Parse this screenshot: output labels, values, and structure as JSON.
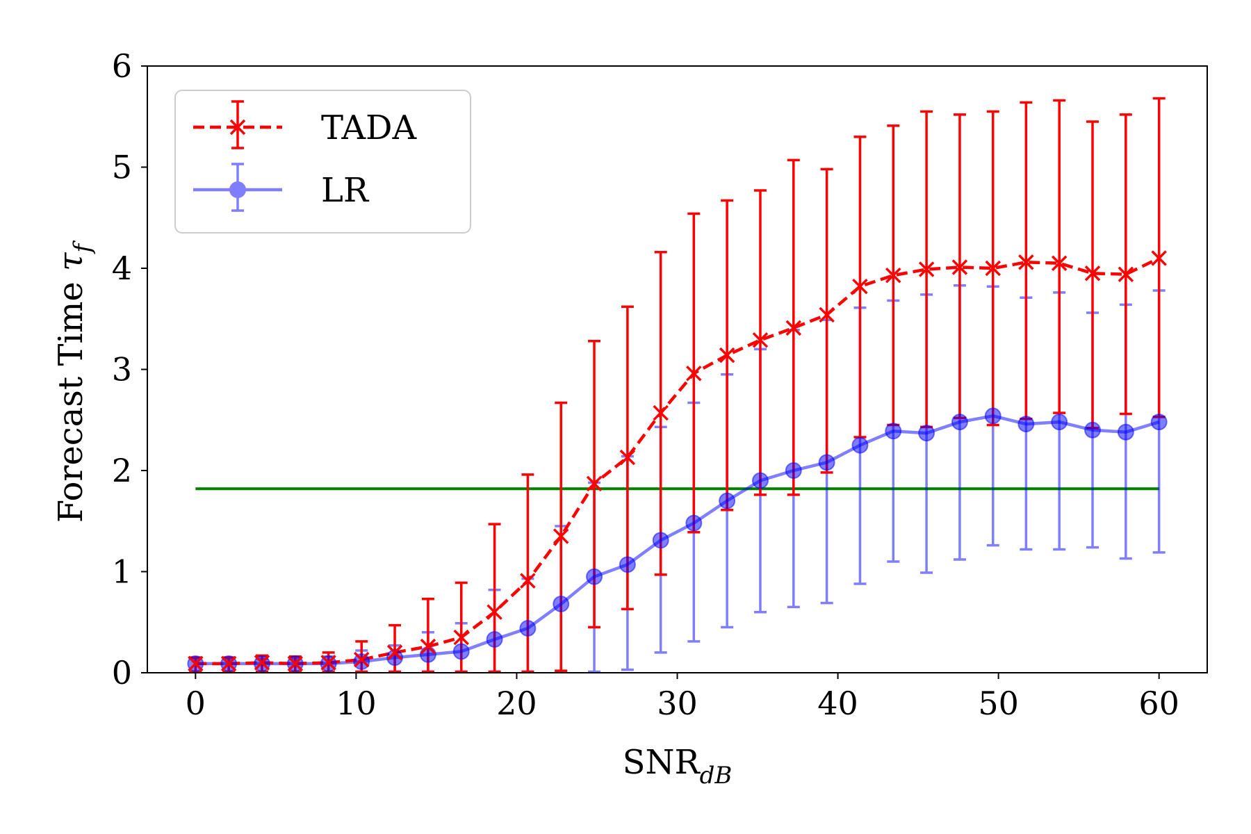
{
  "chart_data": {
    "type": "line",
    "title": "",
    "xlabel_main": "SNR",
    "xlabel_sub": "dB",
    "ylabel_main": "Forecast Time ",
    "ylabel_sym": "τ",
    "ylabel_sub": "f",
    "xlim": [
      -3,
      63
    ],
    "ylim": [
      0,
      6
    ],
    "xticks": [
      0,
      10,
      20,
      30,
      40,
      50,
      60
    ],
    "yticks": [
      0,
      1,
      2,
      3,
      4,
      5,
      6
    ],
    "legend_position": "top-left",
    "reference_line": {
      "y": 1.82,
      "x_start": 0,
      "x_end": 60,
      "color": "#008000"
    },
    "x": [
      0,
      2.07,
      4.14,
      6.21,
      8.28,
      10.34,
      12.41,
      14.48,
      16.55,
      18.62,
      20.69,
      22.76,
      24.83,
      26.9,
      28.97,
      31.03,
      33.1,
      35.17,
      37.24,
      39.31,
      41.38,
      43.45,
      45.52,
      47.59,
      49.66,
      51.72,
      53.79,
      55.86,
      57.93,
      60.0
    ],
    "series": [
      {
        "name": "TADA",
        "color": "#ff0000",
        "linestyle": "dashed",
        "marker": "x",
        "values": [
          0.09,
          0.09,
          0.1,
          0.09,
          0.1,
          0.13,
          0.2,
          0.26,
          0.35,
          0.6,
          0.91,
          1.35,
          1.87,
          2.13,
          2.57,
          2.96,
          3.14,
          3.29,
          3.41,
          3.54,
          3.82,
          3.93,
          3.99,
          4.01,
          4.0,
          4.06,
          4.05,
          3.95,
          3.94,
          4.1
        ],
        "err_lower": [
          0.08,
          0.08,
          0.09,
          0.08,
          0.09,
          0.12,
          0.19,
          0.25,
          0.34,
          0.59,
          0.9,
          1.33,
          1.42,
          1.5,
          1.6,
          1.57,
          1.53,
          1.53,
          1.65,
          1.56,
          1.49,
          1.48,
          1.56,
          1.49,
          1.55,
          1.55,
          1.48,
          1.53,
          1.38,
          1.57
        ],
        "err_upper": [
          0.06,
          0.06,
          0.07,
          0.07,
          0.1,
          0.18,
          0.27,
          0.47,
          0.54,
          0.87,
          1.05,
          1.32,
          1.41,
          1.49,
          1.59,
          1.58,
          1.53,
          1.48,
          1.66,
          1.44,
          1.48,
          1.48,
          1.56,
          1.51,
          1.55,
          1.58,
          1.61,
          1.5,
          1.58,
          1.58
        ]
      },
      {
        "name": "LR",
        "color": "#0000ff",
        "linestyle": "solid",
        "marker": "o",
        "values": [
          0.09,
          0.09,
          0.09,
          0.09,
          0.09,
          0.11,
          0.15,
          0.18,
          0.21,
          0.33,
          0.44,
          0.68,
          0.95,
          1.07,
          1.31,
          1.48,
          1.7,
          1.9,
          2.0,
          2.08,
          2.25,
          2.39,
          2.37,
          2.48,
          2.54,
          2.46,
          2.48,
          2.4,
          2.38,
          2.48
        ],
        "err_lower": [
          0.08,
          0.08,
          0.08,
          0.08,
          0.08,
          0.1,
          0.14,
          0.17,
          0.2,
          0.32,
          0.43,
          0.67,
          0.94,
          1.04,
          1.11,
          1.17,
          1.25,
          1.3,
          1.35,
          1.39,
          1.37,
          1.29,
          1.38,
          1.36,
          1.28,
          1.24,
          1.26,
          1.16,
          1.25,
          1.29
        ],
        "err_upper": [
          0.05,
          0.05,
          0.05,
          0.05,
          0.07,
          0.11,
          0.12,
          0.22,
          0.28,
          0.49,
          0.49,
          0.77,
          0.93,
          1.07,
          1.12,
          1.19,
          1.25,
          1.3,
          1.39,
          1.41,
          1.36,
          1.29,
          1.37,
          1.35,
          1.28,
          1.25,
          1.28,
          1.16,
          1.26,
          1.3
        ]
      }
    ]
  }
}
